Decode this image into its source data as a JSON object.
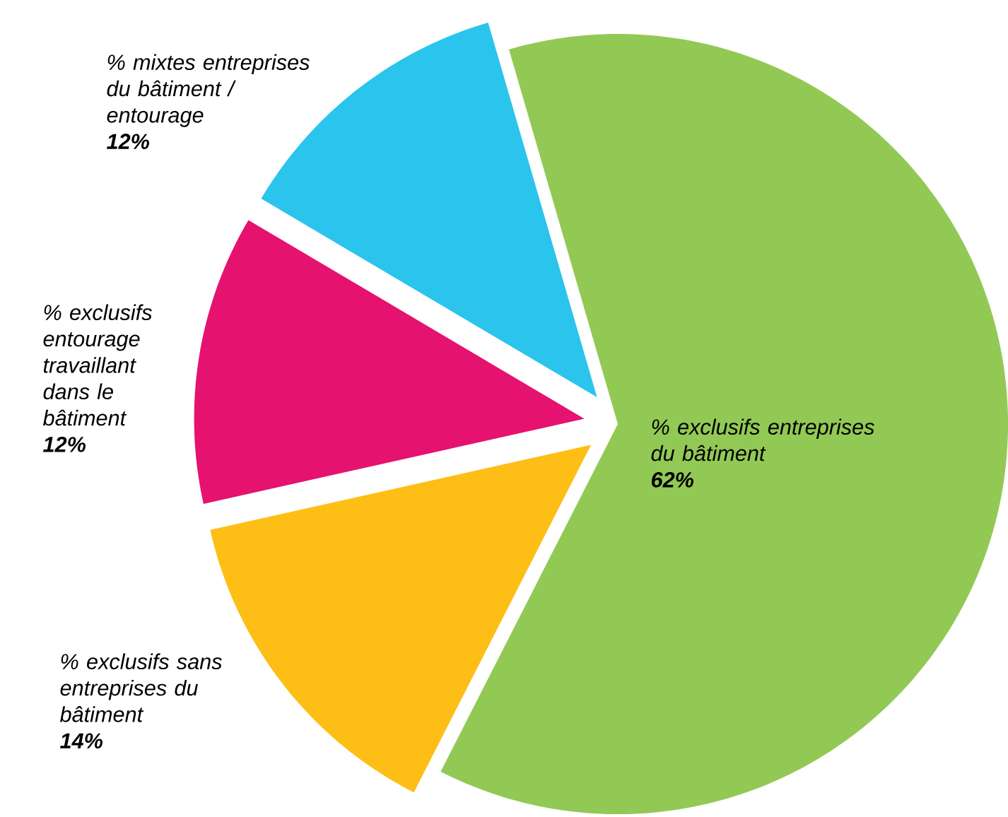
{
  "chart_data": {
    "type": "pie",
    "categories": [
      "% exclusifs entreprises du bâtiment",
      "% exclusifs sans entreprises du bâtiment",
      "% exclusifs entourage travaillant dans le bâtiment",
      "% mixtes entreprises du bâtiment / entourage"
    ],
    "values": [
      62,
      14,
      12,
      12
    ],
    "colors": [
      "#92c955",
      "#fdbe16",
      "#e5126f",
      "#2bc4ec"
    ],
    "value_labels": [
      "62%",
      "14%",
      "12%",
      "12%"
    ]
  }
}
